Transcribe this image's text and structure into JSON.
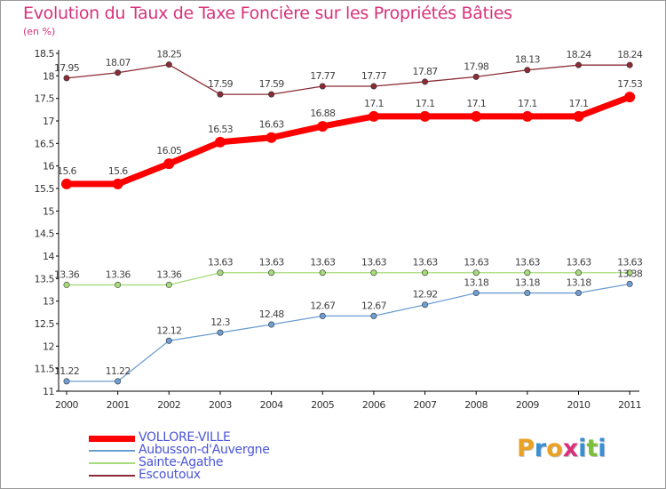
{
  "title": "Evolution du Taux de Taxe Foncière sur les Propriétés Bâties",
  "unit_label": "(en %)",
  "logo": {
    "text": "Proxiti",
    "letters": [
      "P",
      "r",
      "o",
      "x",
      "i",
      "t",
      "i"
    ],
    "colors": [
      "#e9a224",
      "#3a8fd4",
      "#e9a224",
      "#d8317a",
      "#3a8fd4",
      "#7cbf3a",
      "#3a8fd4"
    ]
  },
  "chart_data": {
    "type": "line",
    "title": "Evolution du Taux de Taxe Foncière sur les Propriétés Bâties",
    "ylabel": "(en %)",
    "xlabel": "",
    "categories": [
      "2000",
      "2001",
      "2002",
      "2003",
      "2004",
      "2005",
      "2006",
      "2007",
      "2008",
      "2009",
      "2010",
      "2011"
    ],
    "ylim": [
      11,
      18.5
    ],
    "yticks": [
      "11",
      "11.5",
      "12",
      "12.5",
      "13",
      "13.5",
      "14",
      "14.5",
      "15",
      "15.5",
      "16",
      "16.5",
      "17",
      "17.5",
      "18",
      "18.5"
    ],
    "grid": false,
    "legend_position": "bottom-left",
    "series": [
      {
        "name": "VOLLORE-VILLE",
        "color": "#ff0000",
        "values": [
          15.6,
          15.6,
          16.05,
          16.53,
          16.63,
          16.88,
          17.1,
          17.1,
          17.1,
          17.1,
          17.1,
          17.53
        ],
        "labels": [
          "15.6",
          "15.6",
          "16.05",
          "16.53",
          "16.63",
          "16.88",
          "17.1",
          "17.1",
          "17.1",
          "17.1",
          "17.1",
          "17.53"
        ]
      },
      {
        "name": "Aubusson-d'Auvergne",
        "color": "#6d9ed4",
        "values": [
          11.22,
          11.22,
          12.12,
          12.3,
          12.48,
          12.67,
          12.67,
          12.92,
          13.18,
          13.18,
          13.18,
          13.38
        ],
        "labels": [
          "11.22",
          "11.22",
          "12.12",
          "12.3",
          "12.48",
          "12.67",
          "12.67",
          "12.92",
          "13.18",
          "13.18",
          "13.18",
          "13.38"
        ]
      },
      {
        "name": "Sainte-Agathe",
        "color": "#a6dc7a",
        "values": [
          13.36,
          13.36,
          13.36,
          13.63,
          13.63,
          13.63,
          13.63,
          13.63,
          13.63,
          13.63,
          13.63,
          13.63
        ],
        "labels": [
          "13.36",
          "13.36",
          "13.36",
          "13.63",
          "13.63",
          "13.63",
          "13.63",
          "13.63",
          "13.63",
          "13.63",
          "13.63",
          "13.63"
        ]
      },
      {
        "name": "Escoutoux",
        "color": "#8b2b35",
        "values": [
          17.95,
          18.07,
          18.25,
          17.59,
          17.59,
          17.77,
          17.77,
          17.87,
          17.98,
          18.13,
          18.24,
          18.24
        ],
        "labels": [
          "17.95",
          "18.07",
          "18.25",
          "17.59",
          "17.59",
          "17.77",
          "17.77",
          "17.87",
          "17.98",
          "18.13",
          "18.24",
          "18.24"
        ]
      }
    ]
  }
}
